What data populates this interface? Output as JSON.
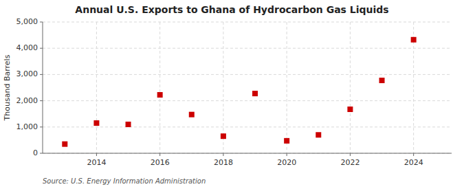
{
  "chart_data": {
    "type": "scatter",
    "title": "Annual U.S. Exports to Ghana of Hydrocarbon Gas Liquids",
    "ylabel": "Thousand Barrels",
    "source": "Source: U.S. Energy Information Administration",
    "x": [
      2013,
      2014,
      2015,
      2016,
      2017,
      2018,
      2019,
      2020,
      2021,
      2022,
      2023,
      2024
    ],
    "values": [
      350,
      1150,
      1100,
      2225,
      1475,
      650,
      2275,
      475,
      700,
      1675,
      2775,
      4325
    ],
    "xlim": [
      2012.3,
      2025.2
    ],
    "xticks": [
      2014,
      2016,
      2018,
      2020,
      2022,
      2024
    ],
    "ylim": [
      0,
      5000
    ],
    "yticks": [
      0,
      {
        "value": 1000,
        "label": "1,000"
      },
      {
        "value": 2000,
        "label": "2,000"
      },
      {
        "value": 3000,
        "label": "3,000"
      },
      {
        "value": 4000,
        "label": "4,000"
      },
      {
        "value": 5000,
        "label": "5,000"
      }
    ],
    "color": "#cc0000",
    "marker": "square",
    "grid": true
  }
}
